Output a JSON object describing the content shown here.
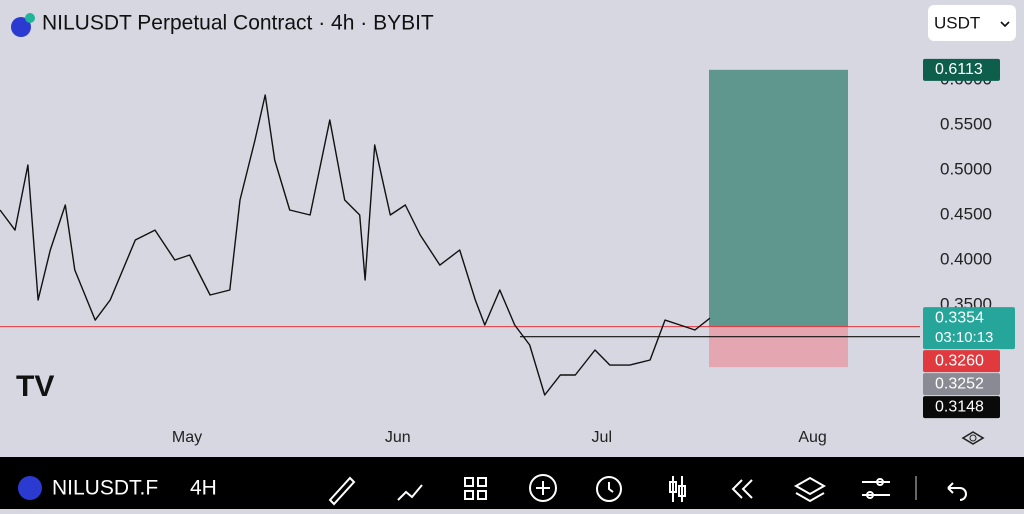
{
  "header": {
    "symbol_title": "NILUSDT Perpetual Contract · 4h · BYBIT",
    "currency": "USDT"
  },
  "chart_data": {
    "type": "line",
    "x": [
      -27.5,
      -25.3,
      -23.4,
      -21.9,
      -20.1,
      -17.9,
      -16.5,
      -13.5,
      -11.3,
      -7.6,
      -4.7,
      -1.8,
      0.4,
      3.4,
      6.3,
      7.8,
      10,
      11.5,
      12.9,
      15.1,
      18.1,
      21,
      23.2,
      25.4,
      26.2,
      27.6,
      29.9,
      32.1,
      34.3,
      37.2,
      40.1,
      42.4,
      43.8,
      46,
      48.2,
      50.4,
      52.6,
      54.9,
      57.1,
      60,
      62.2,
      65.1,
      68.1,
      70.3,
      72.5,
      74.7,
      76.9
    ],
    "values": [
      0.4556,
      0.4333,
      0.5056,
      0.3556,
      0.4111,
      0.4611,
      0.3889,
      0.3333,
      0.3556,
      0.4222,
      0.4333,
      0.4,
      0.4056,
      0.3611,
      0.3667,
      0.4667,
      0.5333,
      0.5833,
      0.5111,
      0.4556,
      0.45,
      0.5556,
      0.4667,
      0.45,
      0.3778,
      0.5278,
      0.45,
      0.4611,
      0.4278,
      0.3944,
      0.4111,
      0.3556,
      0.3278,
      0.3667,
      0.3278,
      0.3056,
      0.25,
      0.2722,
      0.2722,
      0.3,
      0.2833,
      0.2833,
      0.2889,
      0.3333,
      0.3278,
      0.3222,
      0.3354
    ],
    "color": "#111111",
    "xlim": [
      -27.5,
      107.8
    ],
    "xticks": [
      {
        "value": 0,
        "label": "May"
      },
      {
        "value": 31,
        "label": "Jun"
      },
      {
        "value": 61,
        "label": "Jul"
      },
      {
        "value": 92,
        "label": "Aug"
      }
    ],
    "ylim": [
      0.2167,
      0.6889
    ],
    "yticks": [
      {
        "value": 0.35,
        "label": "0.3500"
      },
      {
        "value": 0.4,
        "label": "0.4000"
      },
      {
        "value": 0.45,
        "label": "0.4500"
      },
      {
        "value": 0.5,
        "label": "0.5000"
      },
      {
        "value": 0.55,
        "label": "0.5500"
      },
      {
        "value": 0.6,
        "label": "0.6000"
      }
    ],
    "position": {
      "target": 0.6113,
      "entry": 0.326,
      "stop": 0.281
    },
    "price_tags": [
      {
        "value": 0.6113,
        "label": "0.6113",
        "color": "#0d5e4b"
      },
      {
        "value": 0.3354,
        "label": "0.3354",
        "countdown": "03:10:13",
        "color": "#26a69a"
      },
      {
        "value": 0.326,
        "label": "0.3260",
        "color": "#e03a3e"
      },
      {
        "value": 0.3252,
        "label": "0.3252",
        "color": "#8a8a94"
      },
      {
        "value": 0.3148,
        "label": "0.3148",
        "color": "#0a0a0a"
      }
    ]
  },
  "toolbar": {
    "symbol": "NILUSDT.F",
    "interval": "4H"
  }
}
